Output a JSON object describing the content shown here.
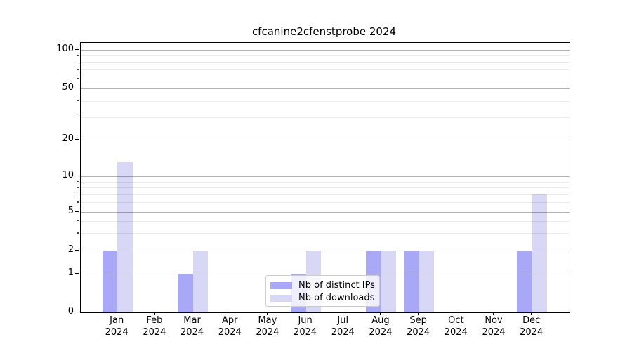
{
  "title": "cfcanine2cfenstprobe 2024",
  "chart_data": {
    "type": "bar",
    "title": "cfcanine2cfenstprobe 2024",
    "categories": [
      "Jan",
      "Feb",
      "Mar",
      "Apr",
      "May",
      "Jun",
      "Jul",
      "Aug",
      "Sep",
      "Oct",
      "Nov",
      "Dec"
    ],
    "category_year": "2024",
    "series": [
      {
        "name": "Nb of distinct IPs",
        "color": "#a8a8f6",
        "values": [
          2,
          0,
          1,
          0,
          0,
          1,
          0,
          2,
          2,
          0,
          0,
          2
        ]
      },
      {
        "name": "Nb of downloads",
        "color": "#d8d8f6",
        "values": [
          13,
          0,
          2,
          0,
          0,
          2,
          0,
          2,
          2,
          0,
          0,
          7
        ]
      }
    ],
    "xlabel": "",
    "ylabel": "",
    "yscale": "symlog",
    "ylim": [
      0,
      115
    ],
    "ytick_values": [
      0,
      1,
      2,
      5,
      10,
      20,
      50,
      100
    ],
    "ytick_labels": [
      "0",
      "1",
      "2",
      "5",
      "10",
      "20",
      "50",
      "100"
    ],
    "yminor_values": [
      3,
      4,
      6,
      7,
      8,
      9,
      30,
      40,
      60,
      70,
      80,
      90
    ],
    "grid": true,
    "legend": {
      "position": "lower center",
      "entries": [
        "Nb of distinct IPs",
        "Nb of downloads"
      ]
    }
  },
  "colors": {
    "major_grid": "rgba(0,0,0,0.30)",
    "minor_grid": "rgba(0,0,0,0.08)",
    "spine": "#000000",
    "legend_border": "#cccccc",
    "legend_bg": "rgba(255,255,255,0.8)"
  }
}
